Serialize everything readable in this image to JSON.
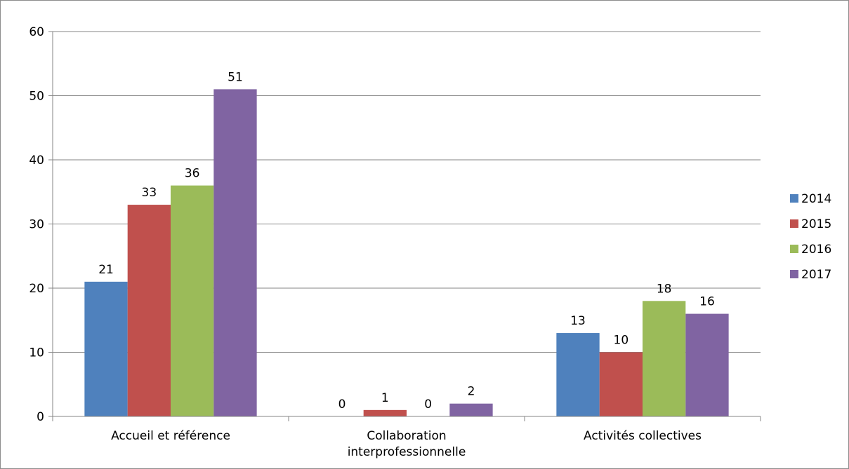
{
  "chart_data": {
    "type": "bar",
    "title": "",
    "xlabel": "",
    "ylabel": "",
    "categories": [
      [
        "Accueil et référence"
      ],
      [
        "Collaboration",
        "interprofessionnelle"
      ],
      [
        "Activités collectives"
      ]
    ],
    "series": [
      {
        "name": "2014",
        "color": "#4f81bd",
        "values": [
          21,
          0,
          13
        ]
      },
      {
        "name": "2015",
        "color": "#c0504d",
        "values": [
          33,
          1,
          10
        ]
      },
      {
        "name": "2016",
        "color": "#9bbb59",
        "values": [
          36,
          0,
          18
        ]
      },
      {
        "name": "2017",
        "color": "#8064a2",
        "values": [
          51,
          2,
          16
        ]
      }
    ],
    "ylim": [
      0,
      60
    ],
    "yticks": [
      0,
      10,
      20,
      30,
      40,
      50,
      60
    ],
    "grid": true,
    "legend_position": "right",
    "data_labels": true
  }
}
